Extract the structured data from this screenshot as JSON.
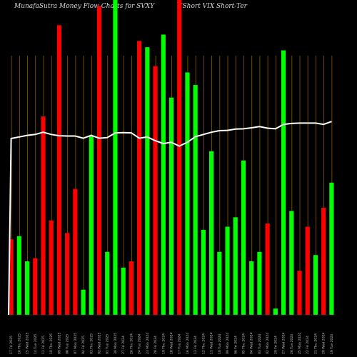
{
  "title_left": "MunafaSutra  Money Flow  Charts for SVXY",
  "title_right": "(Short VIX  Short-Ter",
  "chart_data": {
    "type": "bar",
    "title": "MunafaSutra  Money Flow  Charts for SVXY (Short VIX  Short-Ter",
    "colors": {
      "up": "#00ff00",
      "down": "#ff0000",
      "line": "#ffffff",
      "grid": "#8a5a00",
      "background": "#000000"
    },
    "ylim": [
      0,
      100
    ],
    "categories": [
      "17 Fri 2025",
      "16 Thu 2025",
      "15 Wed 2025",
      "14 Tue 2025",
      "11 Fri 2025",
      "10 Thu 2025",
      "09 Wed 2025",
      "08 Tue 2025",
      "07 Mon 2025",
      "04 Fri 2025",
      "03 Thu 2025",
      "02 Wed 2025",
      "01 Tue 2025",
      "30 Mon 2025",
      "27 Fri 2024",
      "26 Thu 2024",
      "24 Tue 2024",
      "23 Mon 2024",
      "20 Fri 2024",
      "19 Thu 2024",
      "18 Wed 2024",
      "17 Tue 2024",
      "16 Mon 2024",
      "13 Fri 2024",
      "12 Thu 2024",
      "11 Wed 2024",
      "10 Tue 2024",
      "09 Mon 2024",
      "06 Fri 2024",
      "05 Thu 2024",
      "04 Wed 2024",
      "03 Tue 2024",
      "02 Mon 2024",
      "29 Fri 2024",
      "27 Wed 2024",
      "26 Tue 2024",
      "25 Mon 2024",
      "22 Fri 2024",
      "21 Thu 2024",
      "20 Wed 2024",
      "19 Tue 2024"
    ],
    "series": [
      {
        "values": [
          24,
          25,
          17,
          18,
          63,
          30,
          92,
          26,
          40,
          8,
          57,
          98,
          20,
          100,
          15,
          17,
          87,
          85,
          79,
          89,
          69,
          100,
          77,
          73,
          27,
          52,
          20,
          28,
          31,
          49,
          17,
          20,
          29,
          2,
          84,
          33,
          14,
          28,
          19,
          34,
          42
        ],
        "directions": [
          "down",
          "up",
          "up",
          "down",
          "down",
          "down",
          "down",
          "down",
          "down",
          "up",
          "up",
          "down",
          "up",
          "up",
          "up",
          "down",
          "down",
          "up",
          "down",
          "up",
          "up",
          "down",
          "up",
          "up",
          "up",
          "up",
          "up",
          "up",
          "up",
          "up",
          "up",
          "up",
          "down",
          "up",
          "up",
          "up",
          "down",
          "down",
          "up",
          "down",
          "up"
        ]
      },
      {
        "values": [
          56,
          56.5,
          57,
          57.3,
          58,
          57.3,
          56.9,
          56.8,
          56.8,
          56.1,
          57,
          56.1,
          56.3,
          57.8,
          57.9,
          57.8,
          56.1,
          56.5,
          55.3,
          54.4,
          54.8,
          53.6,
          54.8,
          56.6,
          57.3,
          58,
          58.5,
          58.6,
          59,
          59.1,
          59.4,
          59.8,
          59.3,
          59.1,
          60.5,
          60.8,
          60.9,
          60.9,
          60.9,
          60.5,
          61.4
        ]
      }
    ],
    "x_tick_labels": [
      "17 Fri 2025",
      "16 Thu 2025",
      "15 Wed 2025",
      "14 Tue 2025",
      "11 Fri 2025",
      "10 Thu 2025",
      "09 Wed 2025",
      "08 Tue 2025",
      "07 Mon 2025",
      "04 Fri 2025",
      "03 Thu 2025",
      "02 Wed 2025",
      "01 Tue 2025",
      "30 Mon 2025",
      "27 Fri 2024",
      "26 Thu 2024",
      "24 Tue 2024",
      "23 Mon 2024",
      "20 Fri 2024",
      "19 Thu 2024",
      "18 Wed 2024",
      "17 Tue 2024",
      "16 Mon 2024",
      "13 Fri 2024",
      "12 Thu 2024",
      "11 Wed 2024",
      "10 Tue 2024",
      "09 Mon 2024",
      "06 Fri 2024",
      "05 Thu 2024",
      "04 Wed 2024",
      "03 Tue 2024",
      "02 Mon 2024",
      "29 Fri 2024",
      "27 Wed 2024",
      "26 Tue 2024",
      "25 Mon 2024",
      "22 Fri 2024",
      "21 Thu 2024",
      "20 Wed 2024",
      "19 Tue 2024"
    ]
  }
}
